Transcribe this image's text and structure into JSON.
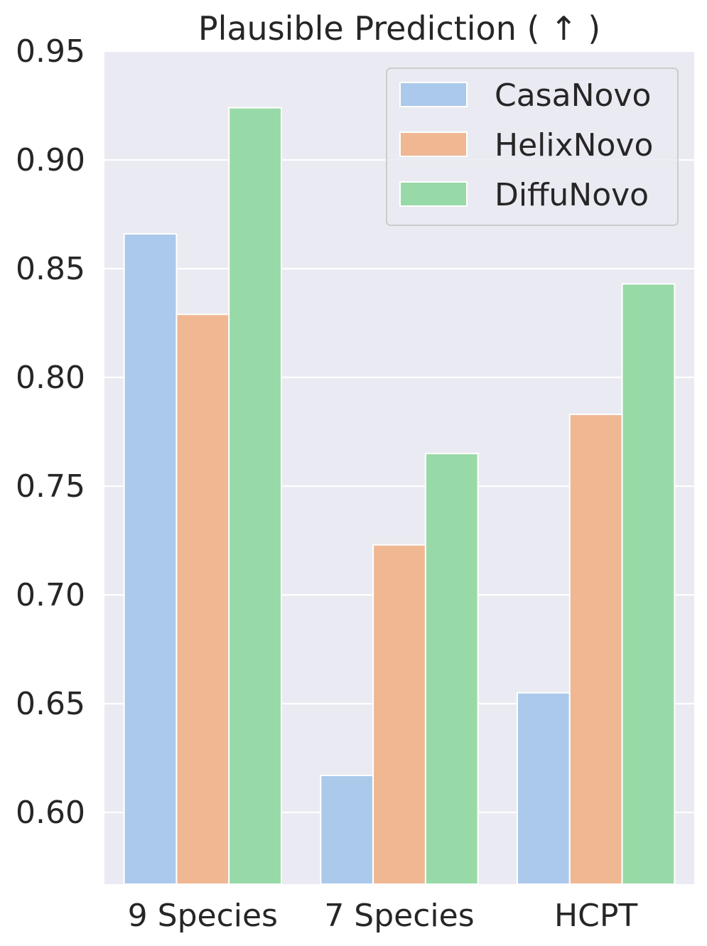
{
  "chart_data": {
    "type": "bar",
    "title": "Plausible Prediction ( ↑ )",
    "xlabel": "",
    "ylabel": "",
    "categories": [
      "9 Species",
      "7 Species",
      "HCPT"
    ],
    "series": [
      {
        "name": "CasaNovo",
        "color": "#abc9ea",
        "values": [
          0.866,
          0.617,
          0.655
        ]
      },
      {
        "name": "HelixNovo",
        "color": "#efb792",
        "values": [
          0.829,
          0.723,
          0.783
        ]
      },
      {
        "name": "DiffuNovo",
        "color": "#98daa7",
        "values": [
          0.924,
          0.765,
          0.843
        ]
      }
    ],
    "ylim": [
      0.567,
      0.95
    ],
    "yticks": [
      0.6,
      0.65,
      0.7,
      0.75,
      0.8,
      0.85,
      0.9,
      0.95
    ],
    "ytick_labels": [
      "0.60",
      "0.65",
      "0.70",
      "0.75",
      "0.80",
      "0.85",
      "0.90",
      "0.95"
    ],
    "grid": true,
    "legend_position": "top-right",
    "background": "#eaeaf2",
    "grid_color": "#ffffff"
  }
}
